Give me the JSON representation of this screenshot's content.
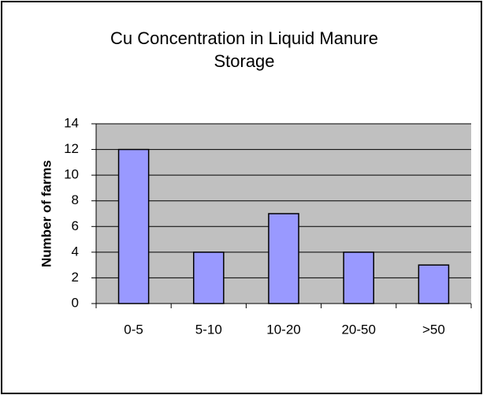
{
  "chart_data": {
    "type": "bar",
    "title": "Cu Concentration in Liquid Manure Storage",
    "y_label": "Number of farms",
    "categories": [
      "0-5",
      "5-10",
      "10-20",
      "20-50",
      ">50"
    ],
    "values": [
      12,
      4,
      7,
      4,
      3
    ],
    "color": "#9999ff",
    "ylim": [
      0,
      14
    ],
    "yticks": [
      0,
      2,
      4,
      6,
      8,
      10,
      12,
      14
    ],
    "grid": true
  }
}
